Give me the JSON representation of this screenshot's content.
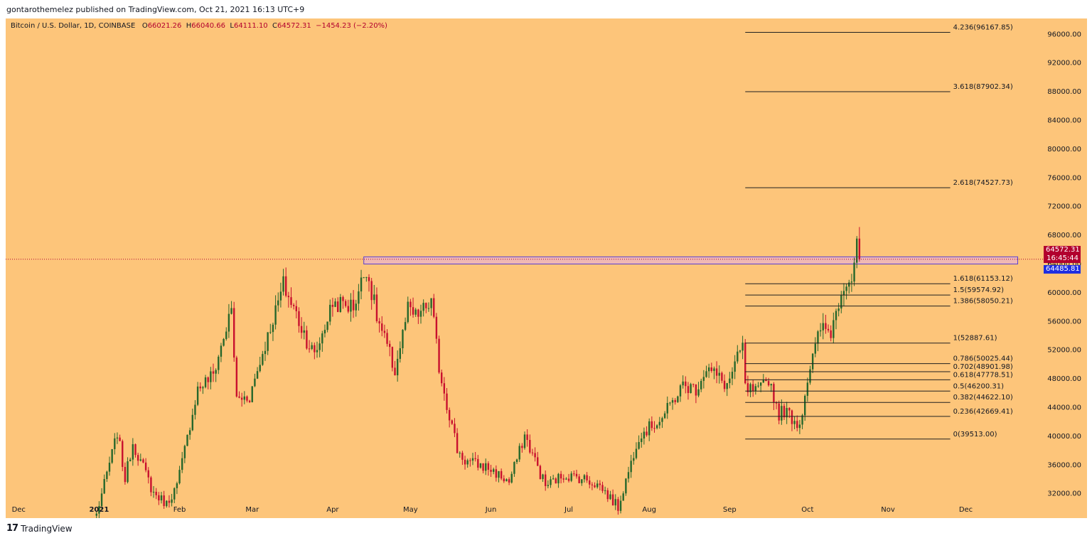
{
  "header": {
    "published_text": "gontarothemelez published on TradingView.com, Oct 21, 2021 16:13 UTC+9"
  },
  "ohlc": {
    "symbol": "Bitcoin / U.S. Dollar, 1D, COINBASE",
    "open_label": "O",
    "open": "66021.26",
    "high_label": "H",
    "high": "66040.66",
    "low_label": "L",
    "low": "64111.10",
    "close_label": "C",
    "close": "64572.31",
    "change": "−1454.23 (−2.20%)"
  },
  "price_tags": {
    "last_price": "64572.31",
    "countdown": "16:45:44",
    "crosshair_price": "64485.81"
  },
  "footer": {
    "logo": "17",
    "brand": "TradingView"
  },
  "colors": {
    "background": "#fdc57a",
    "up_candle": "#26672b",
    "down_candle": "#c8102e",
    "zone_fill": "#e9b3c8",
    "zone_border": "#5a3fd1",
    "fib_line": "#202020",
    "last_price_bg": "#b2002e",
    "crosshair_bg": "#1f2fe0"
  },
  "chart_data": {
    "type": "candlestick",
    "title": "Bitcoin / U.S. Dollar, 1D, COINBASE",
    "y_axis": {
      "side": "right",
      "ylim": [
        29000,
        98500
      ],
      "ticks": [
        "96000.00",
        "92000.00",
        "88000.00",
        "84000.00",
        "80000.00",
        "76000.00",
        "72000.00",
        "68000.00",
        "64000.00",
        "60000.00",
        "56000.00",
        "52000.00",
        "48000.00",
        "44000.00",
        "40000.00",
        "36000.00",
        "32000.00"
      ]
    },
    "x_axis": {
      "xlim": [
        "2020-11-26",
        "2021-12-31"
      ],
      "ticks": [
        {
          "date": "2020-12-01",
          "label": "Dec"
        },
        {
          "date": "2021-01-01",
          "label": "2021"
        },
        {
          "date": "2021-02-01",
          "label": "Feb"
        },
        {
          "date": "2021-03-01",
          "label": "Mar"
        },
        {
          "date": "2021-04-01",
          "label": "Apr"
        },
        {
          "date": "2021-05-01",
          "label": "May"
        },
        {
          "date": "2021-06-01",
          "label": "Jun"
        },
        {
          "date": "2021-07-01",
          "label": "Jul"
        },
        {
          "date": "2021-08-01",
          "label": "Aug"
        },
        {
          "date": "2021-09-01",
          "label": "Sep"
        },
        {
          "date": "2021-10-01",
          "label": "Oct"
        },
        {
          "date": "2021-11-01",
          "label": "Nov"
        },
        {
          "date": "2021-12-01",
          "label": "Dec"
        }
      ]
    },
    "series_anchor": [
      [
        "2020-12-31",
        29000
      ],
      [
        "2021-01-08",
        40500
      ],
      [
        "2021-01-11",
        34000
      ],
      [
        "2021-01-14",
        39000
      ],
      [
        "2021-01-22",
        32000
      ],
      [
        "2021-01-27",
        30500
      ],
      [
        "2021-01-31",
        33000
      ],
      [
        "2021-02-08",
        46500
      ],
      [
        "2021-02-14",
        48500
      ],
      [
        "2021-02-21",
        57500
      ],
      [
        "2021-02-23",
        45000
      ],
      [
        "2021-02-28",
        45500
      ],
      [
        "2021-03-13",
        61000
      ],
      [
        "2021-03-25",
        51000
      ],
      [
        "2021-04-01",
        58500
      ],
      [
        "2021-04-09",
        58000
      ],
      [
        "2021-04-14",
        63500
      ],
      [
        "2021-04-18",
        56500
      ],
      [
        "2021-04-25",
        49000
      ],
      [
        "2021-04-30",
        57500
      ],
      [
        "2021-05-03",
        56500
      ],
      [
        "2021-05-09",
        58500
      ],
      [
        "2021-05-12",
        49500
      ],
      [
        "2021-05-19",
        38000
      ],
      [
        "2021-05-22",
        36500
      ],
      [
        "2021-05-31",
        35500
      ],
      [
        "2021-06-08",
        33500
      ],
      [
        "2021-06-14",
        40000
      ],
      [
        "2021-06-22",
        33000
      ],
      [
        "2021-06-29",
        34500
      ],
      [
        "2021-07-07",
        34000
      ],
      [
        "2021-07-13",
        33000
      ],
      [
        "2021-07-20",
        30000
      ],
      [
        "2021-07-28",
        40000
      ],
      [
        "2021-08-06",
        42500
      ],
      [
        "2021-08-14",
        47000
      ],
      [
        "2021-08-19",
        46500
      ],
      [
        "2021-08-23",
        49500
      ],
      [
        "2021-08-31",
        47000
      ],
      [
        "2021-09-06",
        52500
      ],
      [
        "2021-09-07",
        46500
      ],
      [
        "2021-09-12",
        46000
      ],
      [
        "2021-09-16",
        48000
      ],
      [
        "2021-09-20",
        43000
      ],
      [
        "2021-09-22",
        43500
      ],
      [
        "2021-09-28",
        41500
      ],
      [
        "2021-10-01",
        48000
      ],
      [
        "2021-10-06",
        55000
      ],
      [
        "2021-10-10",
        54500
      ],
      [
        "2021-10-15",
        61500
      ],
      [
        "2021-10-18",
        62000
      ],
      [
        "2021-10-20",
        66000
      ],
      [
        "2021-10-21",
        64572
      ]
    ],
    "resistance_zone": {
      "from": "2021-04-13",
      "to": "2021-12-21",
      "low": 63900,
      "high": 64900
    },
    "last_price": 64572.31,
    "fibonacci": {
      "x_from": "2021-09-07",
      "x_to": "2021-11-25",
      "levels": [
        {
          "ratio": "4.236",
          "price": 96167.85,
          "label": "4.236(96167.85)"
        },
        {
          "ratio": "3.618",
          "price": 87902.34,
          "label": "3.618(87902.34)"
        },
        {
          "ratio": "2.618",
          "price": 74527.73,
          "label": "2.618(74527.73)"
        },
        {
          "ratio": "1.618",
          "price": 61153.12,
          "label": "1.618(61153.12)"
        },
        {
          "ratio": "1.5",
          "price": 59574.92,
          "label": "1.5(59574.92)"
        },
        {
          "ratio": "1.386",
          "price": 58050.21,
          "label": "1.386(58050.21)"
        },
        {
          "ratio": "1",
          "price": 52887.61,
          "label": "1(52887.61)"
        },
        {
          "ratio": "0.786",
          "price": 50025.44,
          "label": "0.786(50025.44)"
        },
        {
          "ratio": "0.702",
          "price": 48901.98,
          "label": "0.702(48901.98)"
        },
        {
          "ratio": "0.618",
          "price": 47778.51,
          "label": "0.618(47778.51)"
        },
        {
          "ratio": "0.5",
          "price": 46200.31,
          "label": "0.5(46200.31)"
        },
        {
          "ratio": "0.382",
          "price": 44622.1,
          "label": "0.382(44622.10)"
        },
        {
          "ratio": "0.236",
          "price": 42669.41,
          "label": "0.236(42669.41)"
        },
        {
          "ratio": "0",
          "price": 39513.0,
          "label": "0(39513.00)"
        }
      ]
    }
  }
}
